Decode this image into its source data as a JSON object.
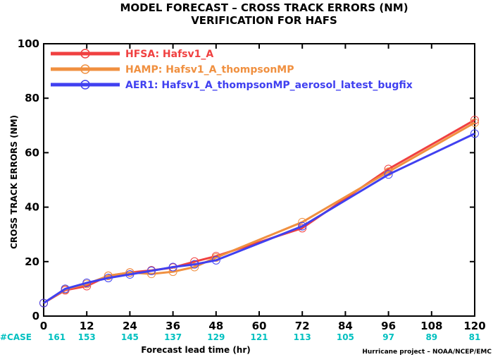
{
  "chart_data": {
    "type": "line",
    "title": "MODEL FORECAST – CROSS TRACK ERRORS (NM)",
    "subtitle": "VERIFICATION FOR HAFS",
    "xlabel": "Forecast lead time (hr)",
    "ylabel": "CROSS TRACK ERRORS (NM)",
    "xlim": [
      0,
      120
    ],
    "ylim": [
      0,
      100
    ],
    "x_ticks": [
      0,
      12,
      24,
      36,
      48,
      60,
      72,
      84,
      96,
      108,
      120
    ],
    "y_ticks": [
      0,
      20,
      40,
      60,
      80,
      100
    ],
    "legend_position": "top-left",
    "series": [
      {
        "name": "HFSA: Hafsv1_A",
        "color": "#f04040",
        "x": [
          0,
          6,
          12,
          18,
          24,
          30,
          36,
          42,
          48,
          72,
          96,
          120
        ],
        "y": [
          4.8,
          9.5,
          11.0,
          14.8,
          16.0,
          16.8,
          17.8,
          20.0,
          22.0,
          32.3,
          54.0,
          72.0
        ]
      },
      {
        "name": "HAMP: Hafsv1_A_thompsonMP",
        "color": "#f09040",
        "x": [
          0,
          6,
          12,
          18,
          24,
          30,
          36,
          42,
          48,
          72,
          96,
          120
        ],
        "y": [
          4.8,
          9.8,
          11.8,
          14.8,
          16.0,
          15.5,
          16.3,
          18.0,
          21.5,
          34.5,
          53.0,
          71.0
        ]
      },
      {
        "name": "AER1: Hafsv1_A_thompsonMP_aerosol_latest_bugfix",
        "color": "#4040f0",
        "x": [
          0,
          6,
          12,
          18,
          24,
          30,
          36,
          42,
          48,
          72,
          96,
          120
        ],
        "y": [
          4.8,
          10.0,
          12.2,
          14.0,
          15.3,
          16.6,
          18.0,
          19.0,
          20.5,
          33.0,
          52.0,
          67.0
        ]
      }
    ],
    "case_label": "#CASE",
    "case_counts": [
      "161",
      "153",
      "145",
      "137",
      "129",
      "121",
      "113",
      "105",
      "97",
      "89",
      "81"
    ],
    "credit": "Hurricane project – NOAA/NCEP/EMC"
  }
}
